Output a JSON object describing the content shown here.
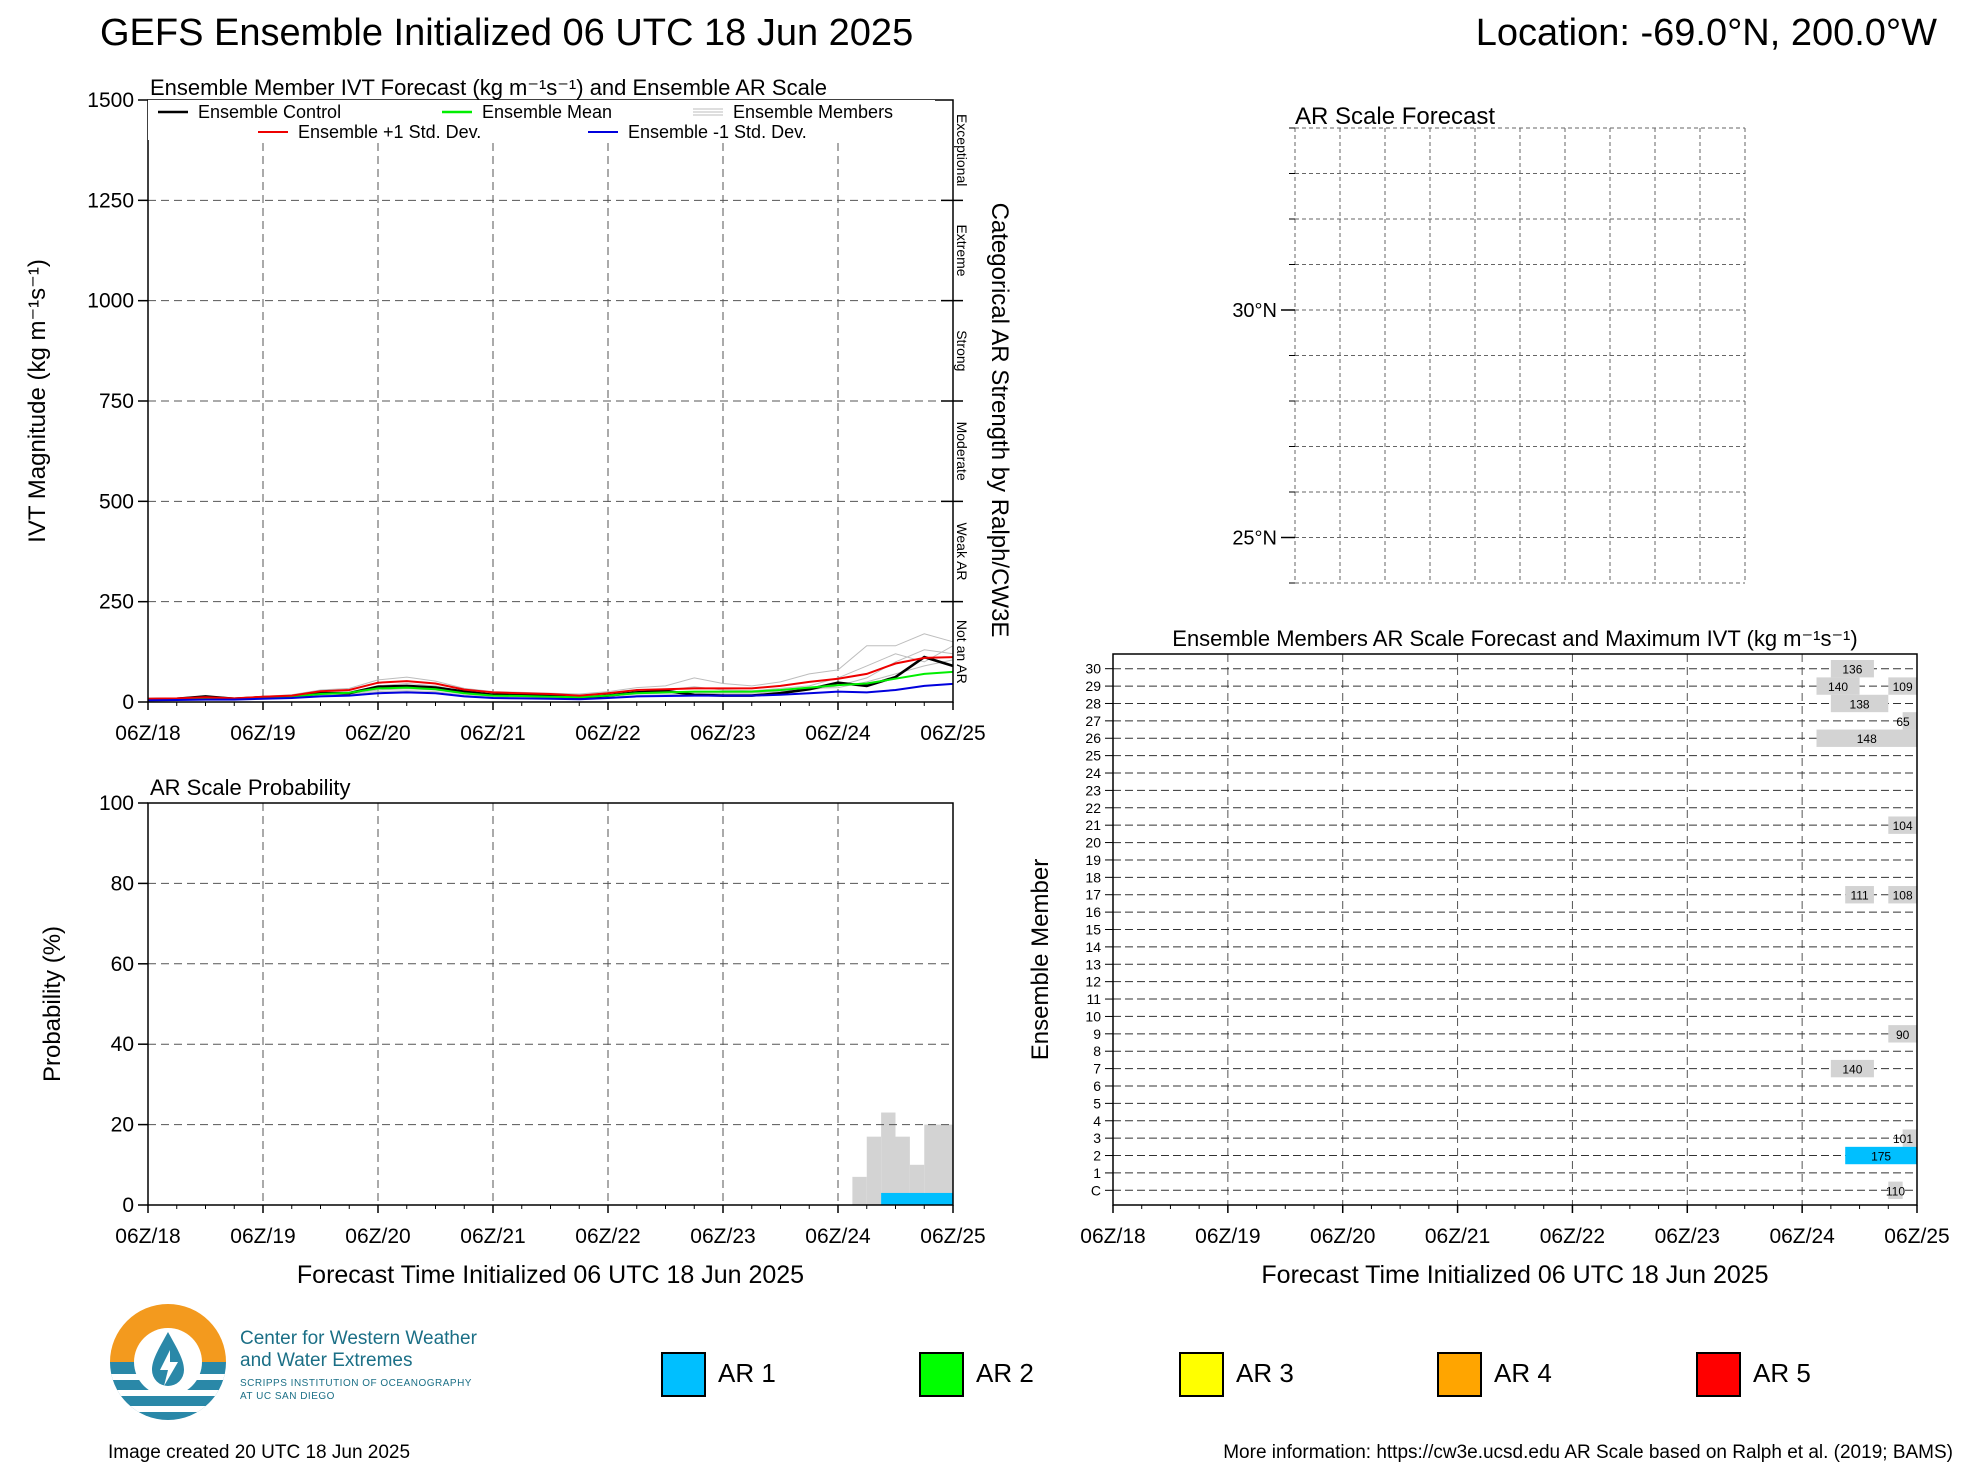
{
  "title": "GEFS Ensemble Initialized 06 UTC 18 Jun 2025",
  "location": "Location: -69.0°N, 200.0°W",
  "colors": {
    "ar1": "#00bfff",
    "ar2": "#00ff00",
    "ar3": "#ffff00",
    "ar4": "#ffa500",
    "ar5": "#ff0000",
    "control": "#000000",
    "mean": "#00ee00",
    "plus_std": "#ee0000",
    "minus_std": "#0000dd",
    "members": "#bdbdbd",
    "probability": "#d3d3d3"
  },
  "time_ticks": [
    "06Z/18",
    "06Z/19",
    "06Z/20",
    "06Z/21",
    "06Z/22",
    "06Z/23",
    "06Z/24",
    "06Z/25"
  ],
  "chart_data": [
    {
      "id": "ivt",
      "type": "line",
      "title": "Ensemble Member IVT Forecast (kg m⁻¹s⁻¹) and Ensemble AR Scale",
      "ylabel": "IVT Magnitude (kg m⁻¹s⁻¹)",
      "right_label": "Categorical AR Strength by Ralph/CW3E",
      "ylim": [
        0,
        1500
      ],
      "yticks": [
        "0",
        "250",
        "500",
        "750",
        "1000",
        "1250",
        "1500"
      ],
      "xlim": [
        0,
        168
      ],
      "grid": true,
      "legend_position": "top",
      "categories_right": [
        "Not an AR",
        "Weak AR",
        "Moderate",
        "Strong",
        "Extreme",
        "Exceptional"
      ],
      "legend": [
        "Ensemble Control",
        "Ensemble Mean",
        "Ensemble Members",
        "Ensemble +1 Std. Dev.",
        "Ensemble -1 Std. Dev."
      ],
      "x": [
        0,
        6,
        12,
        18,
        24,
        30,
        36,
        42,
        48,
        54,
        60,
        66,
        72,
        78,
        84,
        90,
        96,
        102,
        108,
        114,
        120,
        126,
        132,
        138,
        144,
        150,
        156,
        162,
        168
      ],
      "series": [
        {
          "name": "Ensemble Control",
          "color": "#000000",
          "values": [
            7,
            8,
            14,
            8,
            12,
            12,
            22,
            22,
            38,
            40,
            36,
            26,
            18,
            18,
            16,
            10,
            16,
            24,
            28,
            18,
            16,
            16,
            22,
            32,
            48,
            40,
            62,
            112,
            90
          ]
        },
        {
          "name": "Ensemble Mean",
          "color": "#00ee00",
          "values": [
            6,
            7,
            9,
            8,
            11,
            13,
            20,
            23,
            34,
            36,
            32,
            22,
            16,
            15,
            13,
            12,
            16,
            22,
            24,
            26,
            26,
            26,
            30,
            36,
            42,
            46,
            58,
            70,
            75
          ]
        },
        {
          "name": "Ensemble +1 Std. Dev.",
          "color": "#ee0000",
          "values": [
            8,
            9,
            12,
            9,
            13,
            16,
            27,
            30,
            48,
            52,
            46,
            31,
            24,
            22,
            20,
            16,
            22,
            30,
            32,
            34,
            34,
            34,
            40,
            50,
            58,
            70,
            96,
            110,
            112
          ]
        },
        {
          "name": "Ensemble -1 Std. Dev.",
          "color": "#0000dd",
          "values": [
            4,
            5,
            6,
            6,
            8,
            10,
            14,
            16,
            22,
            24,
            22,
            14,
            10,
            9,
            8,
            7,
            10,
            14,
            15,
            16,
            16,
            16,
            18,
            22,
            26,
            24,
            30,
            40,
            45
          ]
        },
        {
          "name": "Ensemble Members",
          "color": "#bdbdbd",
          "values": [
            9,
            10,
            15,
            10,
            14,
            18,
            30,
            34,
            55,
            62,
            52,
            34,
            26,
            24,
            22,
            20,
            26,
            36,
            40,
            60,
            46,
            40,
            50,
            70,
            80,
            140,
            140,
            170,
            150
          ]
        },
        {
          "name": "Ensemble Members",
          "color": "#bdbdbd",
          "values": [
            5,
            6,
            8,
            7,
            10,
            12,
            18,
            20,
            30,
            33,
            30,
            20,
            14,
            13,
            12,
            10,
            14,
            20,
            22,
            24,
            24,
            24,
            28,
            30,
            40,
            60,
            100,
            130,
            120
          ]
        },
        {
          "name": "Ensemble Members",
          "color": "#bdbdbd",
          "values": [
            6,
            7,
            10,
            8,
            12,
            14,
            22,
            25,
            40,
            46,
            40,
            26,
            18,
            17,
            15,
            14,
            18,
            26,
            30,
            38,
            30,
            28,
            34,
            40,
            60,
            90,
            120,
            100,
            140
          ]
        },
        {
          "name": "Ensemble Members",
          "color": "#bdbdbd",
          "values": [
            4,
            5,
            7,
            6,
            9,
            11,
            16,
            18,
            26,
            28,
            26,
            17,
            12,
            11,
            10,
            9,
            12,
            16,
            18,
            20,
            22,
            22,
            26,
            34,
            36,
            50,
            70,
            90,
            105
          ]
        }
      ]
    },
    {
      "id": "probability",
      "type": "bar",
      "title": "AR Scale Probability",
      "ylabel": "Probability (%)",
      "xlabel": "Forecast Time Initialized 06 UTC 18 Jun 2025",
      "ylim": [
        0,
        100
      ],
      "yticks": [
        "0",
        "20",
        "40",
        "60",
        "80",
        "100"
      ],
      "xlim": [
        0,
        168
      ],
      "grid": true,
      "bars": [
        {
          "x0": 147,
          "x1": 150,
          "value": 7,
          "color": "#d3d3d3"
        },
        {
          "x0": 150,
          "x1": 153,
          "value": 17,
          "color": "#d3d3d3"
        },
        {
          "x0": 153,
          "x1": 156,
          "value": 23,
          "color": "#d3d3d3"
        },
        {
          "x0": 156,
          "x1": 159,
          "value": 17,
          "color": "#d3d3d3"
        },
        {
          "x0": 159,
          "x1": 162,
          "value": 10,
          "color": "#d3d3d3"
        },
        {
          "x0": 162,
          "x1": 168,
          "value": 20,
          "color": "#d3d3d3"
        }
      ],
      "ar1_bars": [
        {
          "x0": 153,
          "x1": 168,
          "value": 3,
          "color": "#00bfff"
        }
      ]
    },
    {
      "id": "map",
      "type": "map",
      "title": "AR Scale Forecast",
      "lat_labels": [
        {
          "text": "30°N",
          "lat": 30
        },
        {
          "text": "25°N",
          "lat": 25
        }
      ],
      "lat_range": [
        24,
        34
      ]
    },
    {
      "id": "members",
      "type": "heatmap",
      "title": "Ensemble Members AR Scale Forecast and Maximum IVT (kg m⁻¹s⁻¹)",
      "ylabel": "Ensemble Member",
      "xlabel": "Forecast Time Initialized 06 UTC 18 Jun 2025",
      "xlim": [
        0,
        168
      ],
      "rows": [
        "C",
        "1",
        "2",
        "3",
        "4",
        "5",
        "6",
        "7",
        "8",
        "9",
        "10",
        "11",
        "12",
        "13",
        "14",
        "15",
        "16",
        "17",
        "18",
        "19",
        "20",
        "21",
        "22",
        "23",
        "24",
        "25",
        "26",
        "27",
        "28",
        "29",
        "30"
      ],
      "segments": [
        {
          "row": "30",
          "x0": 150,
          "x1": 159,
          "label": "136",
          "color": "#d3d3d3"
        },
        {
          "row": "29",
          "x0": 147,
          "x1": 156,
          "label": "140",
          "color": "#d3d3d3"
        },
        {
          "row": "29",
          "x0": 162,
          "x1": 168,
          "label": "109",
          "color": "#d3d3d3"
        },
        {
          "row": "28",
          "x0": 150,
          "x1": 162,
          "label": "138",
          "color": "#d3d3d3"
        },
        {
          "row": "27",
          "x0": 165,
          "x1": 168,
          "label": "65",
          "color": "#d3d3d3"
        },
        {
          "row": "26",
          "x0": 147,
          "x1": 168,
          "label": "148",
          "color": "#d3d3d3"
        },
        {
          "row": "21",
          "x0": 162,
          "x1": 168,
          "label": "104",
          "color": "#d3d3d3"
        },
        {
          "row": "17",
          "x0": 153,
          "x1": 159,
          "label": "111",
          "color": "#d3d3d3"
        },
        {
          "row": "17",
          "x0": 162,
          "x1": 168,
          "label": "108",
          "color": "#d3d3d3"
        },
        {
          "row": "9",
          "x0": 162,
          "x1": 168,
          "label": "90",
          "color": "#d3d3d3"
        },
        {
          "row": "7",
          "x0": 150,
          "x1": 159,
          "label": "140",
          "color": "#d3d3d3"
        },
        {
          "row": "3",
          "x0": 165,
          "x1": 168,
          "label": "101",
          "color": "#d3d3d3"
        },
        {
          "row": "2",
          "x0": 153,
          "x1": 168,
          "label": "175",
          "color": "#00bfff"
        },
        {
          "row": "C",
          "x0": 162,
          "x1": 165,
          "label": "110",
          "color": "#d3d3d3"
        }
      ]
    }
  ],
  "legend_ar": [
    {
      "label": "AR 1",
      "color": "#00bfff"
    },
    {
      "label": "AR 2",
      "color": "#00ff00"
    },
    {
      "label": "AR 3",
      "color": "#ffff00"
    },
    {
      "label": "AR 4",
      "color": "#ffa500"
    },
    {
      "label": "AR 5",
      "color": "#ff0000"
    }
  ],
  "logo": {
    "line1": "Center for Western Weather",
    "line2": "and Water Extremes",
    "line3": "SCRIPPS INSTITUTION OF OCEANOGRAPHY",
    "line4": "AT UC SAN DIEGO"
  },
  "footer_left": "Image created 20 UTC 18 Jun 2025",
  "footer_right": "More information: https://cw3e.ucsd.edu AR Scale based on Ralph et al. (2019; BAMS)"
}
